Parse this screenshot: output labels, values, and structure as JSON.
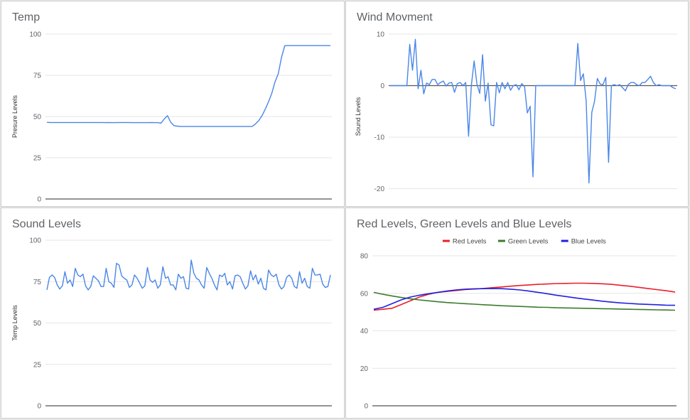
{
  "colors": {
    "grid": "#e6e6e6",
    "axis": "#555555",
    "line": "#4a86e8"
  },
  "chart_data": [
    {
      "type": "line",
      "title": "Temp",
      "xlabel": "",
      "ylabel": "Presure Levels",
      "ylim": [
        0,
        100
      ],
      "yticks": [
        0,
        25,
        50,
        75,
        100
      ],
      "grid": true,
      "legend": "none",
      "series": [
        {
          "color": "#4a86e8",
          "values": [
            46.5,
            46.4,
            46.4,
            46.4,
            46.4,
            46.4,
            46.4,
            46.4,
            46.4,
            46.4,
            46.4,
            46.4,
            46.4,
            46.4,
            46.4,
            46.4,
            46.4,
            46.4,
            46.3,
            46.4,
            46.3,
            46.3,
            46.4,
            46.4,
            46.4,
            46.4,
            46.3,
            46.3,
            46.3,
            46.3,
            46.3,
            46.3,
            46.4,
            46.3,
            46.3,
            46.0,
            48.5,
            50.5,
            46.5,
            44.5,
            44.2,
            44.0,
            44.0,
            44.0,
            44.0,
            44.0,
            44.0,
            44.0,
            44.0,
            44.0,
            44.0,
            44.0,
            44.0,
            44.0,
            44.0,
            44.0,
            44.0,
            44.0,
            44.0,
            44.0,
            44.0,
            44.0,
            44.0,
            44.0,
            45.5,
            47.5,
            50.5,
            54.5,
            59.0,
            64.0,
            71.0,
            76.0,
            86.0,
            93.0,
            93.0,
            93.0,
            93.0,
            93.0,
            93.0,
            93.0,
            93.0,
            93.0,
            93.0,
            93.0,
            93.0,
            93.0,
            93.0,
            93.0
          ]
        }
      ]
    },
    {
      "type": "line",
      "title": "Wind Movment",
      "xlabel": "",
      "ylabel": "Sound Levels",
      "ylim": [
        -22,
        10
      ],
      "yticks": [
        -20,
        -10,
        0,
        10
      ],
      "grid": true,
      "legend": "none",
      "series": [
        {
          "color": "#4a86e8",
          "values": [
            0,
            0,
            0,
            0,
            0,
            0,
            0,
            8,
            3,
            9,
            -0.6,
            3,
            -1.6,
            0.5,
            0.2,
            1.2,
            1.2,
            0.2,
            0.6,
            0.9,
            -0.1,
            0.5,
            0.6,
            -1.3,
            0.4,
            0.6,
            0,
            0.6,
            -9.8,
            0,
            4.8,
            0.3,
            -1.5,
            6,
            -3,
            0.5,
            -7.6,
            -7.8,
            0.6,
            -1.4,
            0.6,
            -0.6,
            0.6,
            -0.9,
            0,
            0.2,
            -0.8,
            0.4,
            -0.2,
            -5.3,
            -4,
            -17.7,
            0,
            0,
            0,
            0,
            0,
            0,
            0,
            0,
            0,
            0,
            0,
            0,
            0,
            0,
            0,
            8.2,
            1,
            2.3,
            -3,
            -18.9,
            -5.2,
            -3,
            1.4,
            0.3,
            0.2,
            1.6,
            -14.9,
            0,
            0.2,
            0,
            0.2,
            -0.4,
            -1,
            0.2,
            0.6,
            0.6,
            0.2,
            0,
            0.6,
            0.6,
            1.2,
            1.8,
            0.6,
            0,
            0.2,
            0,
            0,
            0,
            0,
            -0.4,
            -0.6
          ]
        }
      ]
    },
    {
      "type": "line",
      "title": "Sound Levels",
      "xlabel": "",
      "ylabel": "Temp Levels",
      "ylim": [
        0,
        100
      ],
      "yticks": [
        0,
        25,
        50,
        75,
        100
      ],
      "grid": true,
      "legend": "none",
      "series": [
        {
          "color": "#4a86e8",
          "values": [
            70,
            77.5,
            79,
            77.5,
            73,
            70.5,
            72.5,
            81,
            74,
            76,
            72,
            83,
            79,
            78,
            79.5,
            72.5,
            70,
            72,
            78.5,
            77,
            75.5,
            72,
            72,
            83,
            75,
            74,
            71.5,
            86,
            85,
            78.5,
            77,
            76,
            71.5,
            73,
            79,
            77,
            74,
            71,
            72.5,
            83.5,
            76,
            74.5,
            76,
            71,
            73,
            84,
            77,
            78,
            73,
            73,
            70,
            79.5,
            77,
            78,
            71,
            70.5,
            88,
            80,
            77,
            76,
            73,
            71,
            83.5,
            80,
            77,
            73,
            70,
            79,
            78,
            80,
            73,
            75,
            70.5,
            78.5,
            79,
            78,
            74,
            70.5,
            72.5,
            81.5,
            76,
            79,
            73.5,
            77,
            71,
            70,
            82,
            79,
            78,
            79.5,
            73,
            70.5,
            72,
            77.5,
            79,
            77,
            72,
            71,
            81,
            74,
            77,
            72,
            71,
            83,
            79,
            79,
            79.5,
            73.5,
            71.5,
            72,
            79
          ]
        }
      ]
    },
    {
      "type": "line",
      "title": "Red Levels, Green Levels and Blue Levels",
      "xlabel": "",
      "ylabel": "",
      "ylim": [
        0,
        80
      ],
      "yticks": [
        0,
        20,
        40,
        60,
        80
      ],
      "grid": true,
      "legend": "top",
      "series": [
        {
          "name": "Red Levels",
          "color": "#ea1f2b",
          "values": [
            51,
            51.5,
            52,
            54,
            56,
            58,
            59.5,
            60.5,
            61,
            61.5,
            62,
            62.3,
            62.6,
            63,
            63.4,
            63.8,
            64.2,
            64.5,
            64.8,
            65,
            65.2,
            65.3,
            65.4,
            65.4,
            65.3,
            65.1,
            64.8,
            64.3,
            63.8,
            63.2,
            62.6,
            62,
            61.4,
            60.7
          ]
        },
        {
          "name": "Green Levels",
          "color": "#3c7a2e",
          "values": [
            60.5,
            59.5,
            58.6,
            57.8,
            57.1,
            56.5,
            56,
            55.5,
            55.1,
            54.8,
            54.5,
            54.2,
            53.9,
            53.7,
            53.4,
            53.2,
            53,
            52.8,
            52.6,
            52.5,
            52.3,
            52.2,
            52.1,
            52,
            51.9,
            51.8,
            51.7,
            51.6,
            51.5,
            51.4,
            51.3,
            51.2,
            51.1,
            51
          ]
        },
        {
          "name": "Blue Levels",
          "color": "#2020e0",
          "values": [
            51.5,
            52.5,
            54.5,
            56.5,
            58,
            59,
            59.8,
            60.5,
            61.2,
            61.8,
            62.2,
            62.4,
            62.5,
            62.6,
            62.5,
            62.2,
            61.8,
            61.2,
            60.5,
            59.8,
            59,
            58.3,
            57.6,
            57,
            56.4,
            55.8,
            55.3,
            54.9,
            54.6,
            54.3,
            54.1,
            53.9,
            53.7,
            53.6
          ]
        }
      ]
    }
  ]
}
